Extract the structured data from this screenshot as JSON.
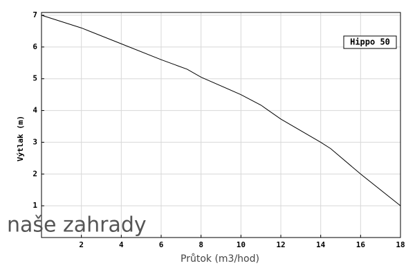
{
  "chart_data": {
    "type": "line",
    "x_label": "Průtok (m3/hod)",
    "y_label": "Výtlak (m)",
    "watermark": "naše zahrady",
    "x": [
      0,
      2,
      4,
      6,
      7.3,
      8,
      10,
      11,
      12,
      14,
      14.5,
      16,
      18
    ],
    "series": [
      {
        "name": "Hippo 50",
        "color": "#000000",
        "values": [
          7.0,
          6.6,
          6.1,
          5.6,
          5.3,
          5.05,
          4.5,
          4.17,
          3.73,
          3.0,
          2.8,
          2.0,
          1.0
        ]
      }
    ],
    "xlim": [
      0,
      18
    ],
    "xticks": [
      2,
      4,
      6,
      8,
      10,
      12,
      14,
      16,
      18
    ],
    "ylim": [
      0,
      7
    ],
    "yticks": [
      1,
      2,
      3,
      4,
      5,
      6,
      7
    ],
    "grid": true,
    "legend": "upper right"
  }
}
